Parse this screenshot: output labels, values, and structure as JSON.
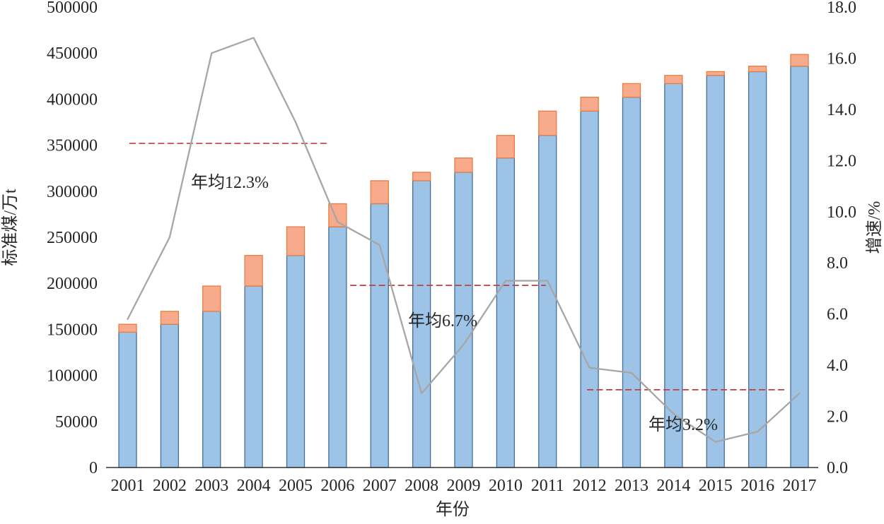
{
  "chart_data": {
    "type": "bar+line",
    "title": "",
    "categories": [
      2001,
      2002,
      2003,
      2004,
      2005,
      2006,
      2007,
      2008,
      2009,
      2010,
      2011,
      2012,
      2013,
      2014,
      2015,
      2016,
      2017
    ],
    "x_axis": {
      "title": "年份"
    },
    "left_axis": {
      "title": "标准煤/万t",
      "min": 0,
      "max": 500000,
      "step": 50000,
      "ticks": [
        "0",
        "50000",
        "100000",
        "150000",
        "200000",
        "250000",
        "300000",
        "350000",
        "400000",
        "450000",
        "500000"
      ]
    },
    "right_axis": {
      "title": "增速/%",
      "min": 0,
      "max": 18,
      "step": 2,
      "ticks": [
        "0.0",
        "2.0",
        "4.0",
        "6.0",
        "8.0",
        "10.0",
        "12.0",
        "14.0",
        "16.0",
        "18.0"
      ]
    },
    "grid": false,
    "legend": "none",
    "series": [
      {
        "name": "previous_year_base",
        "type": "stacked-bar-bottom",
        "axis": "left",
        "fill": "#9DC3E6",
        "border": "#466E96",
        "values": [
          146964,
          155547,
          169577,
          197083,
          230281,
          261369,
          286467,
          311442,
          320611,
          336126,
          360648,
          387043,
          402138,
          416913,
          425806,
          429905,
          435819
        ]
      },
      {
        "name": "annual_increment",
        "type": "stacked-bar-top",
        "axis": "left",
        "fill": "#F7AA8C",
        "border": "#E67D41",
        "values": [
          8583,
          14030,
          27506,
          33198,
          31088,
          25098,
          24975,
          9169,
          15515,
          24522,
          26395,
          15095,
          14775,
          8893,
          4099,
          5914,
          12710
        ]
      },
      {
        "name": "growth_rate_pct",
        "type": "line",
        "axis": "right",
        "color": "#A6A6A6",
        "values": [
          5.8,
          9.0,
          16.2,
          16.8,
          13.5,
          9.6,
          8.7,
          2.9,
          4.8,
          7.3,
          7.3,
          3.9,
          3.7,
          2.1,
          1.0,
          1.4,
          2.9
        ]
      }
    ],
    "totals_standard_coal_wan_t": [
      155547,
      169577,
      197083,
      230281,
      261369,
      286467,
      311442,
      320611,
      336126,
      360648,
      387043,
      402138,
      416913,
      425806,
      429905,
      435819,
      448529
    ],
    "reference_lines": [
      {
        "label": "年均12.3%",
        "level_pct": 12.67,
        "from_year": 2001.04,
        "to_year": 2005.79,
        "label_center_year": 2003.43,
        "label_center_pct": 11.1,
        "color": "#C43C3C"
      },
      {
        "label": "年均6.7%",
        "level_pct": 7.12,
        "from_year": 2006.3,
        "to_year": 2010.96,
        "label_center_year": 2008.5,
        "label_center_pct": 5.7,
        "color": "#C43C3C"
      },
      {
        "label": "年均3.2%",
        "level_pct": 3.04,
        "from_year": 2011.94,
        "to_year": 2016.65,
        "label_center_year": 2014.23,
        "label_center_pct": 1.66,
        "color": "#C43C3C"
      }
    ]
  }
}
